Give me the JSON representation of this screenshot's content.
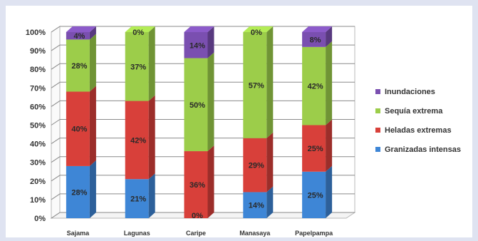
{
  "chart_data": {
    "type": "bar",
    "stacked": true,
    "percent": true,
    "categories": [
      "Sajama",
      "Lagunas",
      "Caripe",
      "Manasaya",
      "Papelpampa"
    ],
    "series": [
      {
        "name": "Granizadas intensas",
        "color": "#3e86d6",
        "values": [
          28,
          21,
          0,
          14,
          25
        ],
        "labels": [
          "28%",
          "21%",
          "0%",
          "14%",
          "25%"
        ]
      },
      {
        "name": "Heladas extremas",
        "color": "#d8403a",
        "values": [
          40,
          42,
          36,
          29,
          25
        ],
        "labels": [
          "40%",
          "42%",
          "36%",
          "29%",
          "25%"
        ]
      },
      {
        "name": "Sequía extrema",
        "color": "#9ccd4a",
        "values": [
          28,
          37,
          50,
          57,
          42
        ],
        "labels": [
          "28%",
          "37%",
          "50%",
          "57%",
          "42%"
        ]
      },
      {
        "name": "Inundaciones",
        "color": "#7a4fb0",
        "values": [
          4,
          0,
          14,
          0,
          8
        ],
        "labels": [
          "4%",
          "0%",
          "14%",
          "0%",
          "8%"
        ]
      }
    ],
    "yticks": [
      "0%",
      "10%",
      "20%",
      "30%",
      "40%",
      "50%",
      "60%",
      "70%",
      "80%",
      "90%",
      "100%"
    ],
    "ylim": [
      0,
      100
    ],
    "grid": true,
    "legend_position": "right"
  }
}
